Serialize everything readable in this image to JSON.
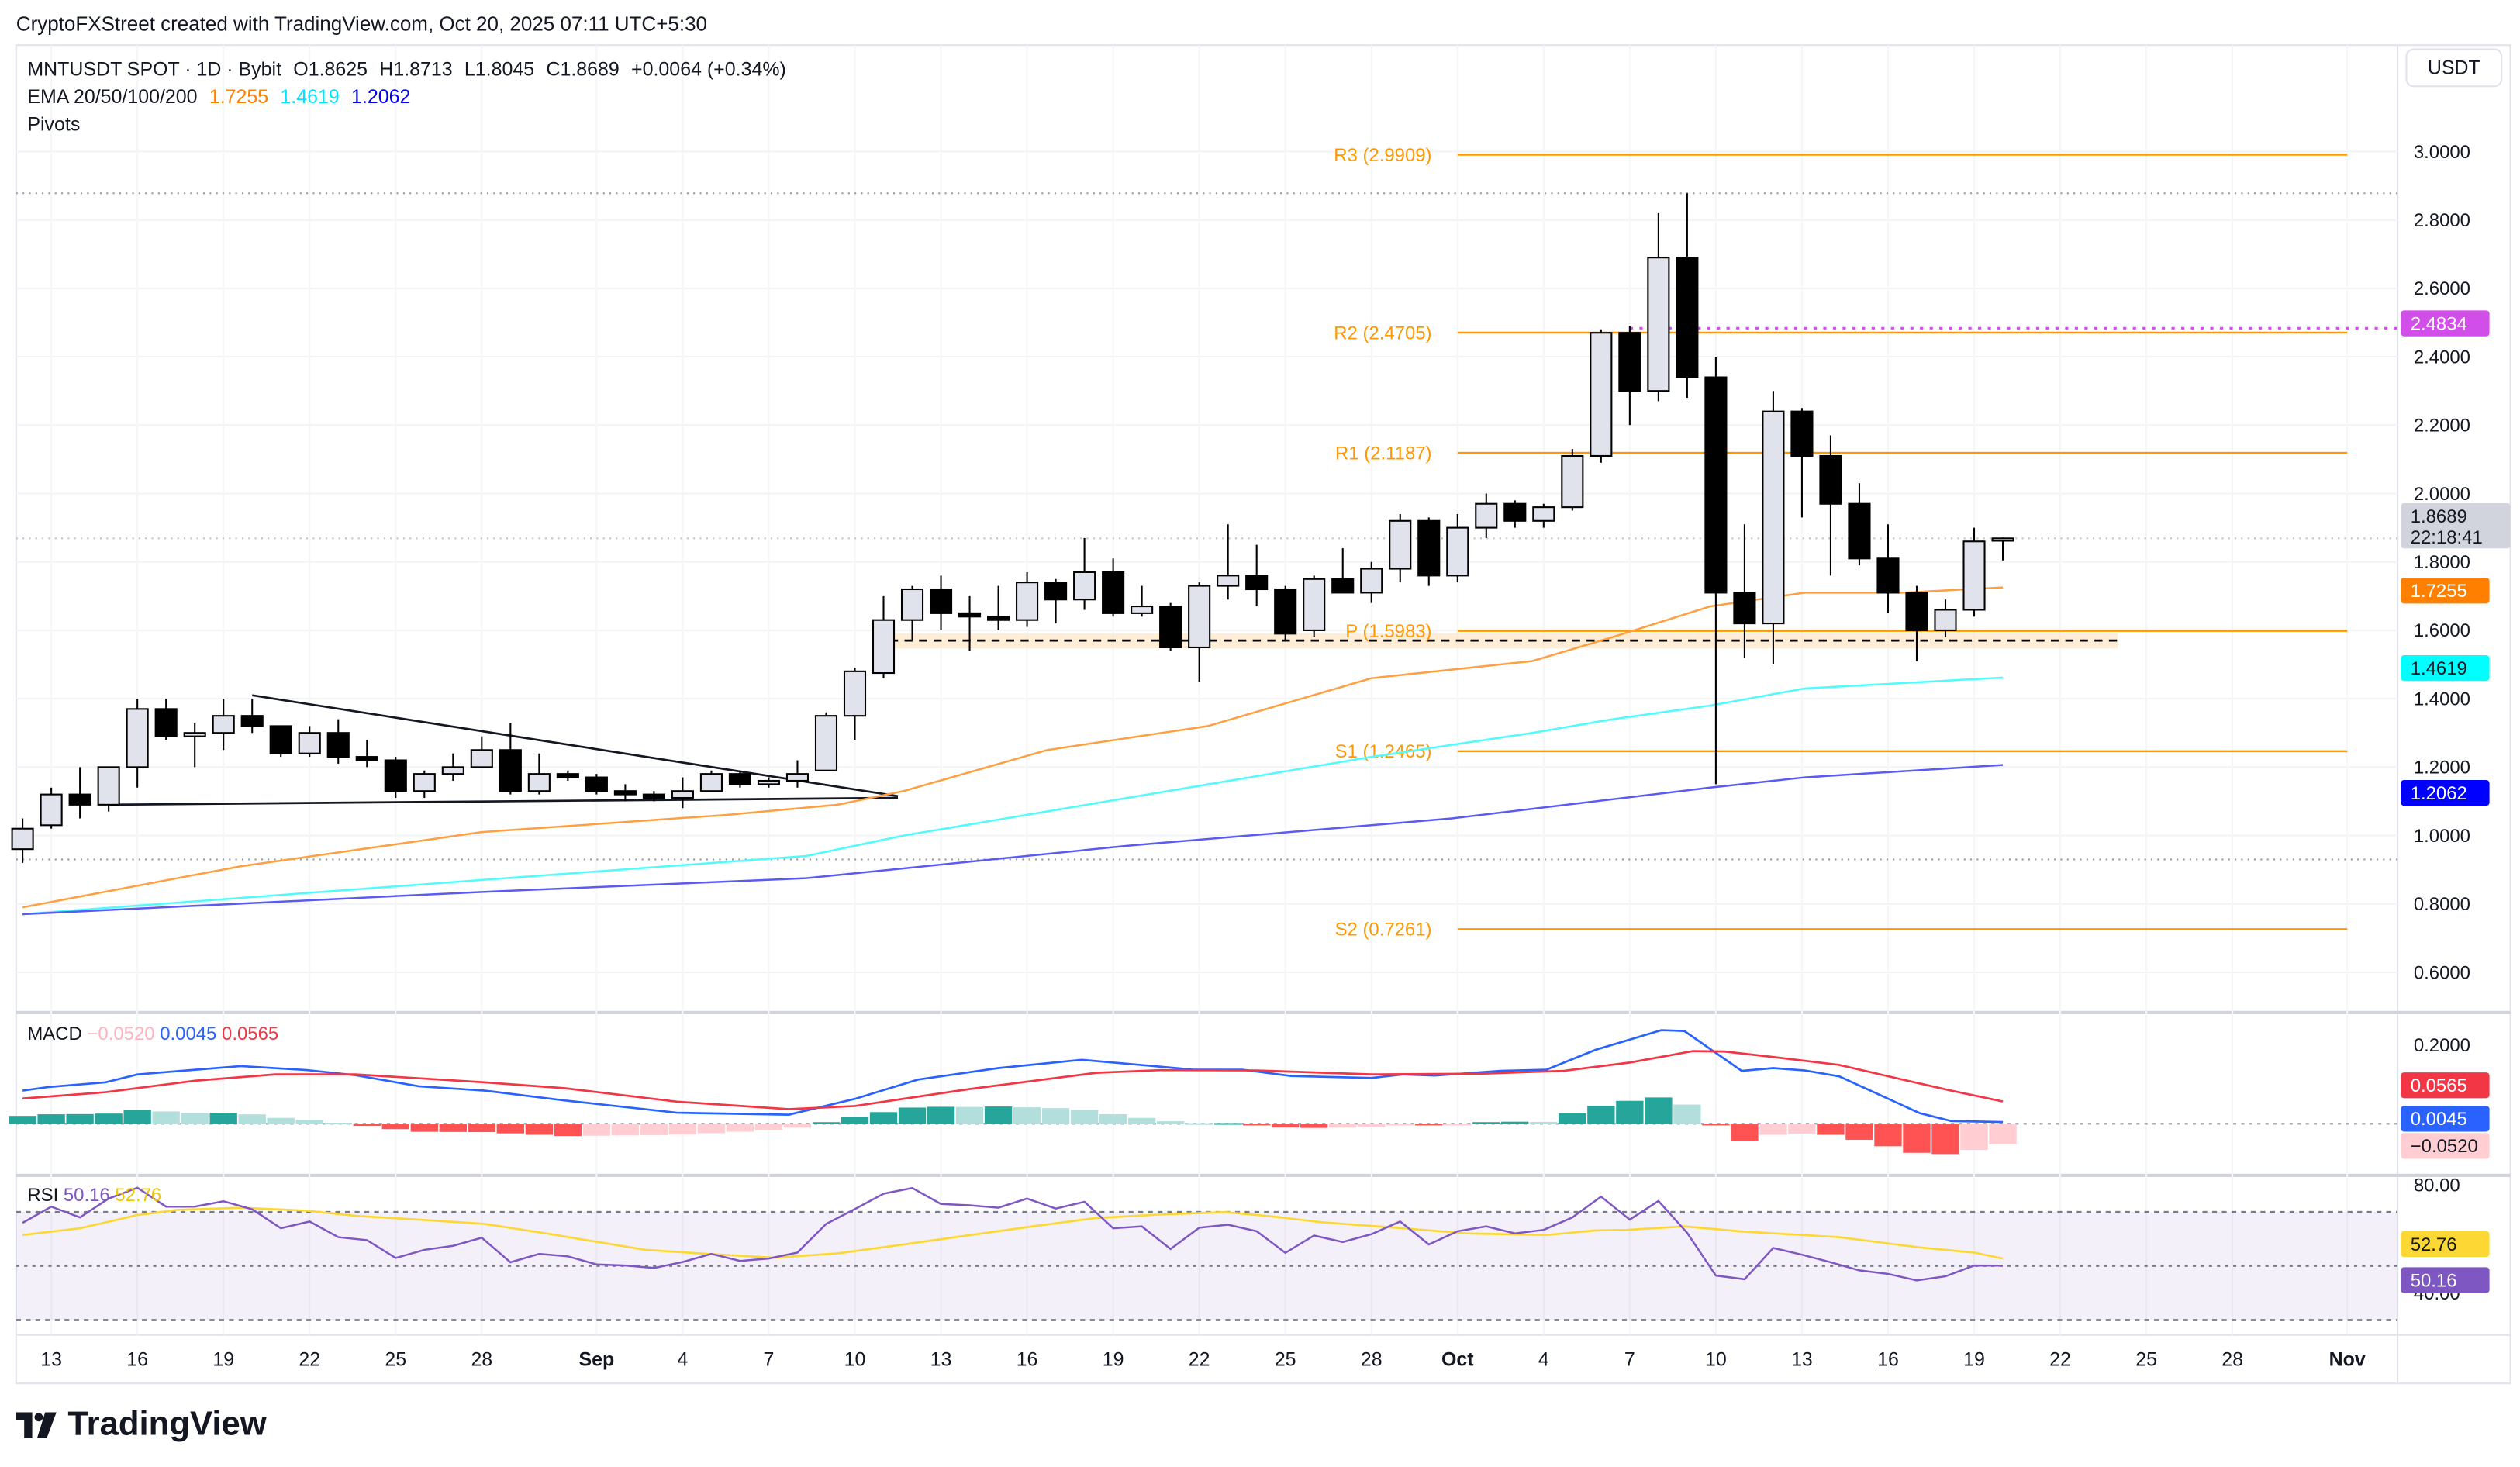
{
  "header": {
    "attribution": "CryptoFXStreet created with TradingView.com, Oct 20, 2025 07:11 UTC+5:30",
    "symbol": "MNTUSDT SPOT · 1D · Bybit",
    "open": "O1.8625",
    "high": "H1.8713",
    "low": "L1.8045",
    "close": "C1.8689",
    "change": "+0.0064 (+0.34%)",
    "ema_label": "EMA 20/50/100/200",
    "ema_values": [
      "1.7255",
      "1.4619",
      "1.2062"
    ],
    "pivots_label": "Pivots"
  },
  "currency_button": "USDT",
  "price_axis": [
    "3.0000",
    "2.8000",
    "2.6000",
    "2.4000",
    "2.2000",
    "2.0000",
    "1.8000",
    "1.6000",
    "1.4000",
    "1.2000",
    "1.0000",
    "0.8000",
    "0.6000"
  ],
  "price_tags": {
    "high_marker": {
      "label": "2.4834",
      "value": 2.4834,
      "color": "#d24ee8"
    },
    "last": {
      "label": "1.8689",
      "value": 1.8689,
      "color": "#d1d4dc",
      "countdown": "22:18:41"
    },
    "ema_a": {
      "label": "1.7255",
      "value": 1.7255,
      "color": "#ff8000"
    },
    "ema_b": {
      "label": "1.4619",
      "value": 1.4619,
      "color": "#00ffff"
    },
    "ema_c": {
      "label": "1.2062",
      "value": 1.2062,
      "color": "#0000ff"
    }
  },
  "macd": {
    "label": "MACD",
    "hist_value": "−0.0520",
    "macd_value": "0.0045",
    "signal_value": "0.0565",
    "axis": [
      "0.2000"
    ],
    "colors": {
      "macd": "#2962ff",
      "signal": "#f23645",
      "hist_up_strong": "#26a69a",
      "hist_up_weak": "#b2dfdb",
      "hist_down_strong": "#ff5252",
      "hist_down_weak": "#ffcdd2"
    }
  },
  "rsi": {
    "label": "RSI",
    "rsi_value": "50.16",
    "ma_value": "52.76",
    "axis": [
      "80.00",
      "40.00"
    ],
    "colors": {
      "rsi": "#7e57c2",
      "ma": "#fdd835"
    }
  },
  "time_axis": [
    {
      "label": "13",
      "day": 1
    },
    {
      "label": "16",
      "day": 4
    },
    {
      "label": "19",
      "day": 7
    },
    {
      "label": "22",
      "day": 10
    },
    {
      "label": "25",
      "day": 13
    },
    {
      "label": "28",
      "day": 16
    },
    {
      "label": "Sep",
      "day": 20,
      "bold": true
    },
    {
      "label": "4",
      "day": 23
    },
    {
      "label": "7",
      "day": 26
    },
    {
      "label": "10",
      "day": 29
    },
    {
      "label": "13",
      "day": 32
    },
    {
      "label": "16",
      "day": 35
    },
    {
      "label": "19",
      "day": 38
    },
    {
      "label": "22",
      "day": 41
    },
    {
      "label": "25",
      "day": 44
    },
    {
      "label": "28",
      "day": 47
    },
    {
      "label": "Oct",
      "day": 50,
      "bold": true
    },
    {
      "label": "4",
      "day": 53
    },
    {
      "label": "7",
      "day": 56
    },
    {
      "label": "10",
      "day": 59
    },
    {
      "label": "13",
      "day": 62
    },
    {
      "label": "16",
      "day": 65
    },
    {
      "label": "19",
      "day": 68
    },
    {
      "label": "22",
      "day": 71
    },
    {
      "label": "25",
      "day": 74
    },
    {
      "label": "28",
      "day": 77
    },
    {
      "label": "Nov",
      "day": 81,
      "bold": true
    }
  ],
  "logo": "TradingView",
  "chart_data": {
    "type": "candlestick",
    "title": "MNTUSDT SPOT · 1D · Bybit",
    "ylabel": "USDT",
    "ylim": [
      0.5,
      3.1
    ],
    "candles_ohlc": [
      [
        0.96,
        1.05,
        0.92,
        1.02
      ],
      [
        1.03,
        1.14,
        1.02,
        1.12
      ],
      [
        1.12,
        1.2,
        1.05,
        1.09
      ],
      [
        1.09,
        1.2,
        1.07,
        1.2
      ],
      [
        1.2,
        1.4,
        1.14,
        1.37
      ],
      [
        1.37,
        1.4,
        1.28,
        1.29
      ],
      [
        1.29,
        1.33,
        1.2,
        1.3
      ],
      [
        1.3,
        1.4,
        1.25,
        1.35
      ],
      [
        1.35,
        1.4,
        1.3,
        1.32
      ],
      [
        1.32,
        1.32,
        1.23,
        1.24
      ],
      [
        1.24,
        1.32,
        1.23,
        1.3
      ],
      [
        1.3,
        1.34,
        1.21,
        1.23
      ],
      [
        1.23,
        1.28,
        1.2,
        1.22
      ],
      [
        1.22,
        1.23,
        1.11,
        1.13
      ],
      [
        1.13,
        1.19,
        1.11,
        1.18
      ],
      [
        1.18,
        1.24,
        1.16,
        1.2
      ],
      [
        1.2,
        1.29,
        1.2,
        1.25
      ],
      [
        1.25,
        1.33,
        1.12,
        1.13
      ],
      [
        1.13,
        1.24,
        1.12,
        1.18
      ],
      [
        1.18,
        1.19,
        1.16,
        1.17
      ],
      [
        1.17,
        1.18,
        1.12,
        1.13
      ],
      [
        1.13,
        1.15,
        1.1,
        1.12
      ],
      [
        1.12,
        1.13,
        1.1,
        1.11
      ],
      [
        1.11,
        1.17,
        1.08,
        1.13
      ],
      [
        1.13,
        1.19,
        1.13,
        1.18
      ],
      [
        1.18,
        1.19,
        1.14,
        1.15
      ],
      [
        1.15,
        1.17,
        1.14,
        1.16
      ],
      [
        1.16,
        1.22,
        1.14,
        1.18
      ],
      [
        1.19,
        1.36,
        1.19,
        1.35
      ],
      [
        1.35,
        1.49,
        1.28,
        1.48
      ],
      [
        1.475,
        1.7,
        1.46,
        1.63
      ],
      [
        1.63,
        1.73,
        1.57,
        1.72
      ],
      [
        1.72,
        1.76,
        1.6,
        1.65
      ],
      [
        1.65,
        1.7,
        1.54,
        1.64
      ],
      [
        1.64,
        1.73,
        1.6,
        1.63
      ],
      [
        1.63,
        1.77,
        1.61,
        1.74
      ],
      [
        1.74,
        1.75,
        1.62,
        1.69
      ],
      [
        1.69,
        1.87,
        1.66,
        1.77
      ],
      [
        1.77,
        1.81,
        1.64,
        1.65
      ],
      [
        1.65,
        1.73,
        1.64,
        1.67
      ],
      [
        1.67,
        1.68,
        1.54,
        1.55
      ],
      [
        1.55,
        1.74,
        1.45,
        1.73
      ],
      [
        1.73,
        1.91,
        1.69,
        1.76
      ],
      [
        1.76,
        1.85,
        1.67,
        1.72
      ],
      [
        1.72,
        1.73,
        1.57,
        1.59
      ],
      [
        1.6,
        1.76,
        1.58,
        1.75
      ],
      [
        1.75,
        1.84,
        1.71,
        1.71
      ],
      [
        1.71,
        1.8,
        1.68,
        1.78
      ],
      [
        1.78,
        1.94,
        1.74,
        1.92
      ],
      [
        1.92,
        1.93,
        1.73,
        1.76
      ],
      [
        1.76,
        1.94,
        1.74,
        1.9
      ],
      [
        1.9,
        2.0,
        1.87,
        1.97
      ],
      [
        1.97,
        1.98,
        1.9,
        1.92
      ],
      [
        1.92,
        1.97,
        1.9,
        1.96
      ],
      [
        1.96,
        2.13,
        1.95,
        2.11
      ],
      [
        2.11,
        2.48,
        2.09,
        2.47
      ],
      [
        2.47,
        2.49,
        2.2,
        2.3
      ],
      [
        2.3,
        2.82,
        2.27,
        2.69
      ],
      [
        2.69,
        2.878,
        2.28,
        2.34
      ],
      [
        2.34,
        2.4,
        1.15,
        1.71
      ],
      [
        1.71,
        1.91,
        1.52,
        1.62
      ],
      [
        1.62,
        2.3,
        1.5,
        2.24
      ],
      [
        2.24,
        2.25,
        1.93,
        2.11
      ],
      [
        2.11,
        2.17,
        1.76,
        1.97
      ],
      [
        1.97,
        2.03,
        1.79,
        1.81
      ],
      [
        1.81,
        1.91,
        1.65,
        1.71
      ],
      [
        1.71,
        1.73,
        1.51,
        1.6
      ],
      [
        1.6,
        1.69,
        1.58,
        1.66
      ],
      [
        1.66,
        1.9,
        1.64,
        1.86
      ],
      [
        1.8625,
        1.8713,
        1.8045,
        1.8689
      ]
    ],
    "ema_series": [
      {
        "name": "EMA A",
        "color": "#ff9f40",
        "points": [
          [
            0,
            0.79
          ],
          [
            7.6,
            0.91
          ],
          [
            16,
            1.01
          ],
          [
            24.5,
            1.06
          ],
          [
            28.4,
            1.09
          ],
          [
            30.7,
            1.13
          ],
          [
            35.7,
            1.25
          ],
          [
            41.3,
            1.32
          ],
          [
            47,
            1.46
          ],
          [
            52.6,
            1.51
          ],
          [
            55.4,
            1.58
          ],
          [
            58.8,
            1.67
          ],
          [
            62.1,
            1.71
          ],
          [
            65.5,
            1.71
          ],
          [
            69,
            1.7255
          ]
        ]
      },
      {
        "name": "EMA B",
        "color": "#4dfcfc",
        "points": [
          [
            0,
            0.77
          ],
          [
            16,
            0.87
          ],
          [
            27.3,
            0.94
          ],
          [
            30.7,
            1.0
          ],
          [
            38.5,
            1.11
          ],
          [
            47,
            1.23
          ],
          [
            52.6,
            1.3
          ],
          [
            55.4,
            1.34
          ],
          [
            58.8,
            1.38
          ],
          [
            62.1,
            1.43
          ],
          [
            69,
            1.4619
          ]
        ]
      },
      {
        "name": "EMA C",
        "color": "#5a5af5",
        "points": [
          [
            0,
            0.77
          ],
          [
            16,
            0.835
          ],
          [
            27.3,
            0.875
          ],
          [
            38.5,
            0.97
          ],
          [
            49.8,
            1.05
          ],
          [
            58.8,
            1.14
          ],
          [
            62.1,
            1.17
          ],
          [
            69,
            1.2062
          ]
        ]
      }
    ],
    "pivots": [
      {
        "label": "R3 (2.9909)",
        "value": 2.9909
      },
      {
        "label": "R2 (2.4705)",
        "value": 2.4705
      },
      {
        "label": "R1 (2.1187)",
        "value": 2.1187
      },
      {
        "label": "P (1.5983)",
        "value": 1.5983
      },
      {
        "label": "S1 (1.2465)",
        "value": 1.2465
      },
      {
        "label": "S2 (0.7261)",
        "value": 0.7261
      }
    ],
    "pivot_range_days": [
      50,
      81
    ],
    "pivot_color": "#ff9800",
    "support_zone": {
      "from_day": 30,
      "to_day": 73,
      "low": 1.547,
      "high": 1.591,
      "mid": 1.57
    },
    "triangle": {
      "upper": [
        [
          8,
          1.41
        ],
        [
          30.5,
          1.115
        ]
      ],
      "lower": [
        [
          3,
          1.09
        ],
        [
          30.5,
          1.11
        ]
      ]
    },
    "range_high": 2.878,
    "range_low": 0.93,
    "macd_line": [
      [
        0,
        0.084
      ],
      [
        0.9,
        0.093
      ],
      [
        2.9,
        0.105
      ],
      [
        4,
        0.125
      ],
      [
        7.6,
        0.146
      ],
      [
        9.9,
        0.136
      ],
      [
        11.6,
        0.123
      ],
      [
        13.8,
        0.095
      ],
      [
        16.1,
        0.084
      ],
      [
        18.9,
        0.059
      ],
      [
        22.8,
        0.028
      ],
      [
        26.7,
        0.023
      ],
      [
        29,
        0.063
      ],
      [
        31.2,
        0.112
      ],
      [
        34,
        0.141
      ],
      [
        36.9,
        0.162
      ],
      [
        39.1,
        0.148
      ],
      [
        40.8,
        0.137
      ],
      [
        42.5,
        0.137
      ],
      [
        44.2,
        0.121
      ],
      [
        47,
        0.116
      ],
      [
        48.1,
        0.125
      ],
      [
        49.2,
        0.122
      ],
      [
        51.5,
        0.134
      ],
      [
        53.1,
        0.137
      ],
      [
        54.8,
        0.187
      ],
      [
        57.1,
        0.237
      ],
      [
        57.9,
        0.235
      ],
      [
        59.9,
        0.134
      ],
      [
        61,
        0.141
      ],
      [
        62.1,
        0.135
      ],
      [
        63.3,
        0.12
      ],
      [
        66.1,
        0.027
      ],
      [
        67.2,
        0.007
      ],
      [
        69,
        0.0045
      ]
    ],
    "signal_line": [
      [
        0,
        0.064
      ],
      [
        2.9,
        0.08
      ],
      [
        6,
        0.109
      ],
      [
        8.8,
        0.125
      ],
      [
        11.6,
        0.125
      ],
      [
        16.1,
        0.105
      ],
      [
        18.9,
        0.09
      ],
      [
        22.8,
        0.056
      ],
      [
        26.7,
        0.037
      ],
      [
        29,
        0.045
      ],
      [
        33,
        0.088
      ],
      [
        37.4,
        0.129
      ],
      [
        39.7,
        0.136
      ],
      [
        43,
        0.135
      ],
      [
        47,
        0.125
      ],
      [
        50.9,
        0.127
      ],
      [
        53.7,
        0.134
      ],
      [
        56,
        0.155
      ],
      [
        58.2,
        0.184
      ],
      [
        59.3,
        0.183
      ],
      [
        61,
        0.169
      ],
      [
        63.3,
        0.149
      ],
      [
        65.5,
        0.112
      ],
      [
        67.2,
        0.084
      ],
      [
        69,
        0.0565
      ]
    ],
    "rsi_values": [
      66,
      72,
      68,
      75,
      79,
      72,
      72,
      74,
      71,
      64,
      66.5,
      60.7,
      59.6,
      53,
      56,
      57.5,
      60.5,
      51.4,
      54.5,
      53.6,
      50.6,
      50.2,
      49.3,
      51.5,
      54.5,
      51.9,
      52.8,
      55,
      65.6,
      71.1,
      76.8,
      78.9,
      73,
      72.5,
      71.6,
      75,
      71.3,
      73.8,
      64,
      64.7,
      56.3,
      64.2,
      65.3,
      62.9,
      54.9,
      61.3,
      58.9,
      61.8,
      66.5,
      58,
      62.9,
      64.7,
      62.1,
      63.4,
      68,
      75.7,
      67.2,
      74.1,
      62.3,
      46.5,
      45.1,
      56.7,
      54.2,
      51.4,
      48.4,
      47.1,
      44.7,
      46.2,
      50.2,
      50.16
    ],
    "rsi_ma": [
      [
        0,
        61.5
      ],
      [
        2,
        64
      ],
      [
        4,
        68.9
      ],
      [
        5.4,
        70.8
      ],
      [
        7.6,
        71.6
      ],
      [
        9.9,
        70.5
      ],
      [
        11.6,
        68.6
      ],
      [
        13.8,
        67.2
      ],
      [
        16.1,
        65.6
      ],
      [
        18.3,
        62
      ],
      [
        21.7,
        56
      ],
      [
        23.9,
        54.5
      ],
      [
        26.2,
        53.1
      ],
      [
        28.4,
        54.7
      ],
      [
        30.7,
        58
      ],
      [
        32.9,
        61.3
      ],
      [
        35.2,
        64.7
      ],
      [
        37.4,
        67.8
      ],
      [
        39.7,
        69.1
      ],
      [
        41.9,
        70
      ],
      [
        43.6,
        68.3
      ],
      [
        45.3,
        66.2
      ],
      [
        48.1,
        64
      ],
      [
        50.3,
        62.1
      ],
      [
        53.1,
        61.5
      ],
      [
        54.8,
        63.2
      ],
      [
        55.9,
        63.4
      ],
      [
        57.9,
        64.7
      ],
      [
        59.9,
        62.8
      ],
      [
        63.3,
        60.7
      ],
      [
        66.1,
        56.9
      ],
      [
        68,
        55
      ],
      [
        69,
        52.76
      ]
    ],
    "rsi_bands": [
      70,
      50,
      30
    ]
  }
}
